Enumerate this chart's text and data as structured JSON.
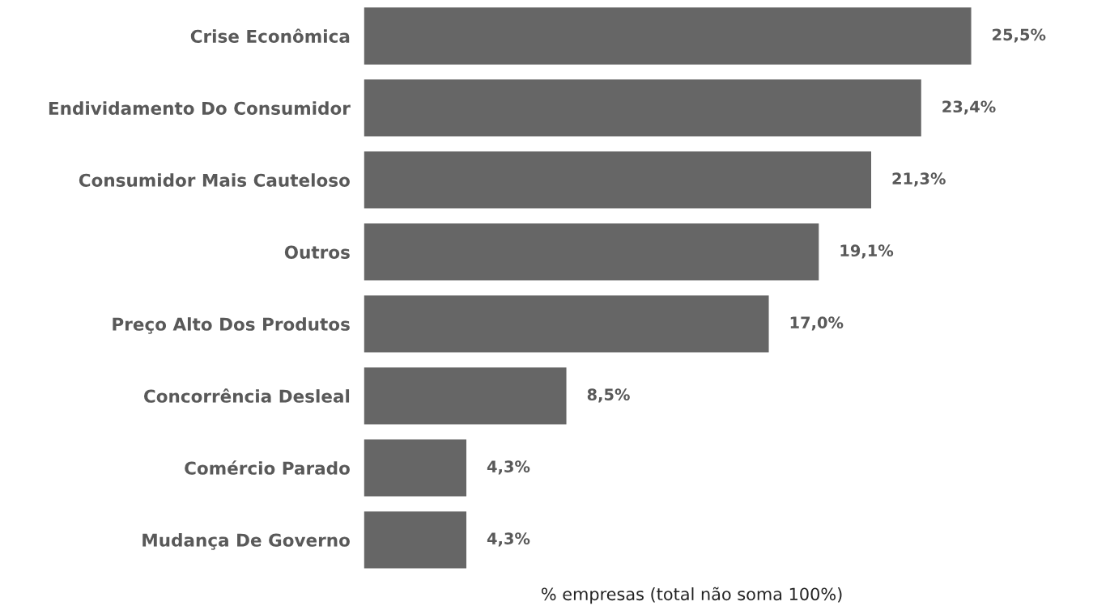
{
  "chart_data": {
    "type": "bar",
    "orientation": "horizontal",
    "xlabel": "% empresas (total não soma 100%)",
    "categories": [
      "Crise Econômica",
      "Endividamento Do Consumidor",
      "Consumidor Mais Cauteloso",
      "Outros",
      "Preço Alto Dos Produtos",
      "Concorrência Desleal",
      "Comércio Parado",
      "Mudança De Governo"
    ],
    "values": [
      25.5,
      23.4,
      21.3,
      19.1,
      17.0,
      8.5,
      4.3,
      4.3
    ],
    "value_labels": [
      "25,5%",
      "23,4%",
      "21,3%",
      "19,1%",
      "17,0%",
      "8,5%",
      "4,3%",
      "4,3%"
    ],
    "color": "#666666",
    "grid": false,
    "legend": false
  }
}
